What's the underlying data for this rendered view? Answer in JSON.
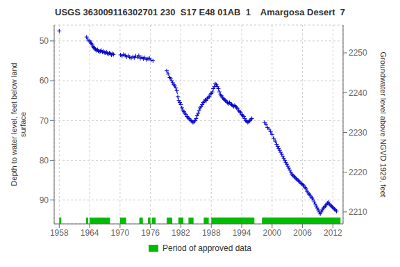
{
  "chart_data": {
    "type": "line",
    "title": "USGS 363009116302701 230  S17 E48 01AB  1    Amargosa Desert  7",
    "ylabel": "Depth to water level, feet below land\nsurface",
    "y2label": "Groundwater level above NGVD 1929, feet",
    "xlim": [
      1957,
      2014
    ],
    "xticks": [
      1958,
      1964,
      1970,
      1976,
      1982,
      1988,
      1994,
      2000,
      2006,
      2012
    ],
    "ylim": [
      96,
      46
    ],
    "yticks": [
      50,
      60,
      70,
      80,
      90
    ],
    "y2lim": [
      2207,
      2257
    ],
    "y2ticks": [
      2210,
      2220,
      2230,
      2240,
      2250
    ],
    "grid": true,
    "legend": "bottom",
    "series": [
      {
        "color": "#0000cc",
        "marker": "+",
        "line_style": "dashed",
        "x": [
          1958.0
        ],
        "values": [
          47.5
        ]
      },
      {
        "color": "#0000cc",
        "marker": "+",
        "line_style": "dashed",
        "x": [
          1963.4,
          1963.7,
          1964.0,
          1964.15,
          1964.3,
          1964.5,
          1964.65,
          1964.8,
          1965.0,
          1965.15,
          1965.35,
          1965.55,
          1965.7,
          1965.9,
          1966.1,
          1966.3,
          1966.5,
          1966.7,
          1966.9,
          1967.1,
          1967.3,
          1967.5,
          1967.7,
          1967.9,
          1968.1,
          1968.3,
          1968.5,
          1968.7
        ],
        "values": [
          49.0,
          49.8,
          50.0,
          50.3,
          50.6,
          51.0,
          51.3,
          51.7,
          51.9,
          52.1,
          52.4,
          52.2,
          52.5,
          52.7,
          52.6,
          52.4,
          52.8,
          52.6,
          52.9,
          53.0,
          52.8,
          53.1,
          53.3,
          53.0,
          53.2,
          53.5,
          53.2,
          53.4
        ]
      },
      {
        "color": "#0000cc",
        "marker": "+",
        "line_style": "dashed",
        "x": [
          1970.1,
          1970.4,
          1970.7,
          1971.0,
          1971.3,
          1971.6,
          1971.9,
          1972.2,
          1972.5,
          1972.8,
          1973.1,
          1973.4,
          1973.7,
          1974.0,
          1974.3,
          1974.6,
          1974.9,
          1975.2,
          1975.5,
          1975.8,
          1976.1,
          1976.5
        ],
        "values": [
          53.5,
          53.8,
          53.4,
          53.6,
          54.0,
          53.7,
          54.1,
          54.3,
          54.0,
          54.2,
          53.8,
          54.1,
          53.7,
          54.4,
          54.1,
          54.5,
          54.2,
          54.7,
          54.5,
          54.3,
          54.8,
          55.0
        ]
      },
      {
        "color": "#0000cc",
        "marker": "+",
        "line_style": "dashed",
        "x": [
          1979.2,
          1979.5,
          1979.8,
          1980.0,
          1980.2,
          1980.4,
          1980.6,
          1980.8,
          1981.0,
          1981.2,
          1981.4,
          1981.6,
          1981.8,
          1982.0,
          1982.2,
          1982.4,
          1982.6,
          1982.8,
          1983.0,
          1983.2,
          1983.4,
          1983.6,
          1983.8,
          1984.0,
          1984.2,
          1984.4,
          1984.6,
          1984.8,
          1985.0,
          1985.2,
          1985.4,
          1985.6,
          1985.8,
          1986.0,
          1986.2,
          1986.4,
          1986.6,
          1986.8,
          1987.0,
          1987.2,
          1987.4,
          1987.6,
          1987.8,
          1988.0,
          1988.2,
          1988.4,
          1988.6,
          1988.8,
          1989.0,
          1989.2,
          1989.4,
          1989.6,
          1989.8,
          1990.0,
          1990.2,
          1990.4,
          1990.6,
          1990.8,
          1991.0,
          1991.2,
          1991.4,
          1991.6,
          1991.8,
          1992.0,
          1992.2,
          1992.4,
          1992.6,
          1992.8,
          1993.0,
          1993.2,
          1993.4,
          1993.6,
          1993.8,
          1994.0,
          1994.2,
          1994.4,
          1994.6,
          1994.8,
          1995.0,
          1995.2,
          1995.4,
          1995.6,
          1995.8,
          1996.0
        ],
        "values": [
          57.5,
          58.3,
          59.2,
          59.5,
          60.0,
          60.5,
          61.0,
          61.3,
          61.8,
          62.5,
          64.0,
          65.0,
          65.5,
          66.0,
          66.8,
          67.5,
          67.8,
          68.2,
          68.5,
          69.0,
          69.3,
          69.5,
          69.8,
          70.0,
          70.3,
          70.5,
          70.3,
          70.0,
          69.5,
          68.8,
          68.2,
          67.5,
          66.8,
          66.5,
          66.0,
          65.5,
          65.2,
          64.8,
          65.0,
          64.5,
          64.2,
          64.0,
          63.5,
          63.2,
          62.8,
          62.0,
          61.5,
          60.8,
          61.0,
          61.5,
          62.0,
          62.8,
          63.5,
          63.8,
          64.2,
          64.5,
          64.8,
          65.0,
          65.2,
          65.5,
          65.8,
          65.5,
          65.8,
          66.0,
          66.2,
          66.5,
          66.2,
          66.5,
          66.8,
          67.0,
          67.5,
          67.8,
          68.0,
          68.5,
          68.8,
          69.0,
          69.5,
          70.0,
          70.2,
          70.5,
          70.3,
          70.0,
          69.8,
          69.5
        ]
      },
      {
        "color": "#0000cc",
        "marker": "+",
        "line_style": "dashed",
        "x": [
          1998.5,
          1998.8,
          1999.1,
          1999.4,
          1999.7,
          2000.0,
          2000.3,
          2000.6,
          2000.9,
          2001.1,
          2001.3,
          2001.5,
          2001.7,
          2001.9,
          2002.1,
          2002.3,
          2002.5,
          2002.7,
          2002.9,
          2003.1,
          2003.3,
          2003.5,
          2003.7,
          2003.9,
          2004.1,
          2004.3,
          2004.5,
          2004.7,
          2004.9,
          2005.1,
          2005.3,
          2005.5,
          2005.7,
          2005.9,
          2006.1,
          2006.3,
          2006.5,
          2006.7,
          2006.9,
          2007.1,
          2007.3,
          2007.5,
          2007.7,
          2007.9,
          2008.1,
          2008.3,
          2008.5,
          2008.7,
          2008.9,
          2009.1,
          2009.3,
          2009.5,
          2009.7,
          2009.9,
          2010.1,
          2010.3,
          2010.5,
          2010.7,
          2010.9,
          2011.1,
          2011.3,
          2011.5,
          2011.7,
          2011.9,
          2012.1,
          2012.3,
          2012.5,
          2012.7
        ],
        "values": [
          70.5,
          71.0,
          71.8,
          72.2,
          72.8,
          73.5,
          74.5,
          75.2,
          76.0,
          76.5,
          77.0,
          77.5,
          78.0,
          78.5,
          79.0,
          79.5,
          80.0,
          80.5,
          81.0,
          81.5,
          82.0,
          82.5,
          83.0,
          83.5,
          83.8,
          84.0,
          84.3,
          84.6,
          84.8,
          85.0,
          85.3,
          85.5,
          85.8,
          86.0,
          86.2,
          86.5,
          86.8,
          87.2,
          87.8,
          88.2,
          88.5,
          88.8,
          89.2,
          89.5,
          90.0,
          90.5,
          91.0,
          91.5,
          92.0,
          92.5,
          93.0,
          93.5,
          93.0,
          92.5,
          92.0,
          91.8,
          91.5,
          91.2,
          90.8,
          90.5,
          91.0,
          91.3,
          91.5,
          91.8,
          92.0,
          92.3,
          92.5,
          92.8
        ]
      }
    ],
    "approved": {
      "name": "Period of approved data",
      "color": "#00bb00",
      "segments": [
        [
          1958.0,
          1958.4
        ],
        [
          1963.3,
          1963.7
        ],
        [
          1964.0,
          1968.0
        ],
        [
          1970.0,
          1971.2
        ],
        [
          1973.8,
          1974.5
        ],
        [
          1975.5,
          1976.0
        ],
        [
          1976.3,
          1977.0
        ],
        [
          1979.2,
          1980.3
        ],
        [
          1981.5,
          1982.5
        ],
        [
          1983.5,
          1984.5
        ],
        [
          1986.5,
          1987.5
        ],
        [
          1988.0,
          1996.5
        ],
        [
          1998.0,
          2013.5
        ]
      ]
    }
  }
}
